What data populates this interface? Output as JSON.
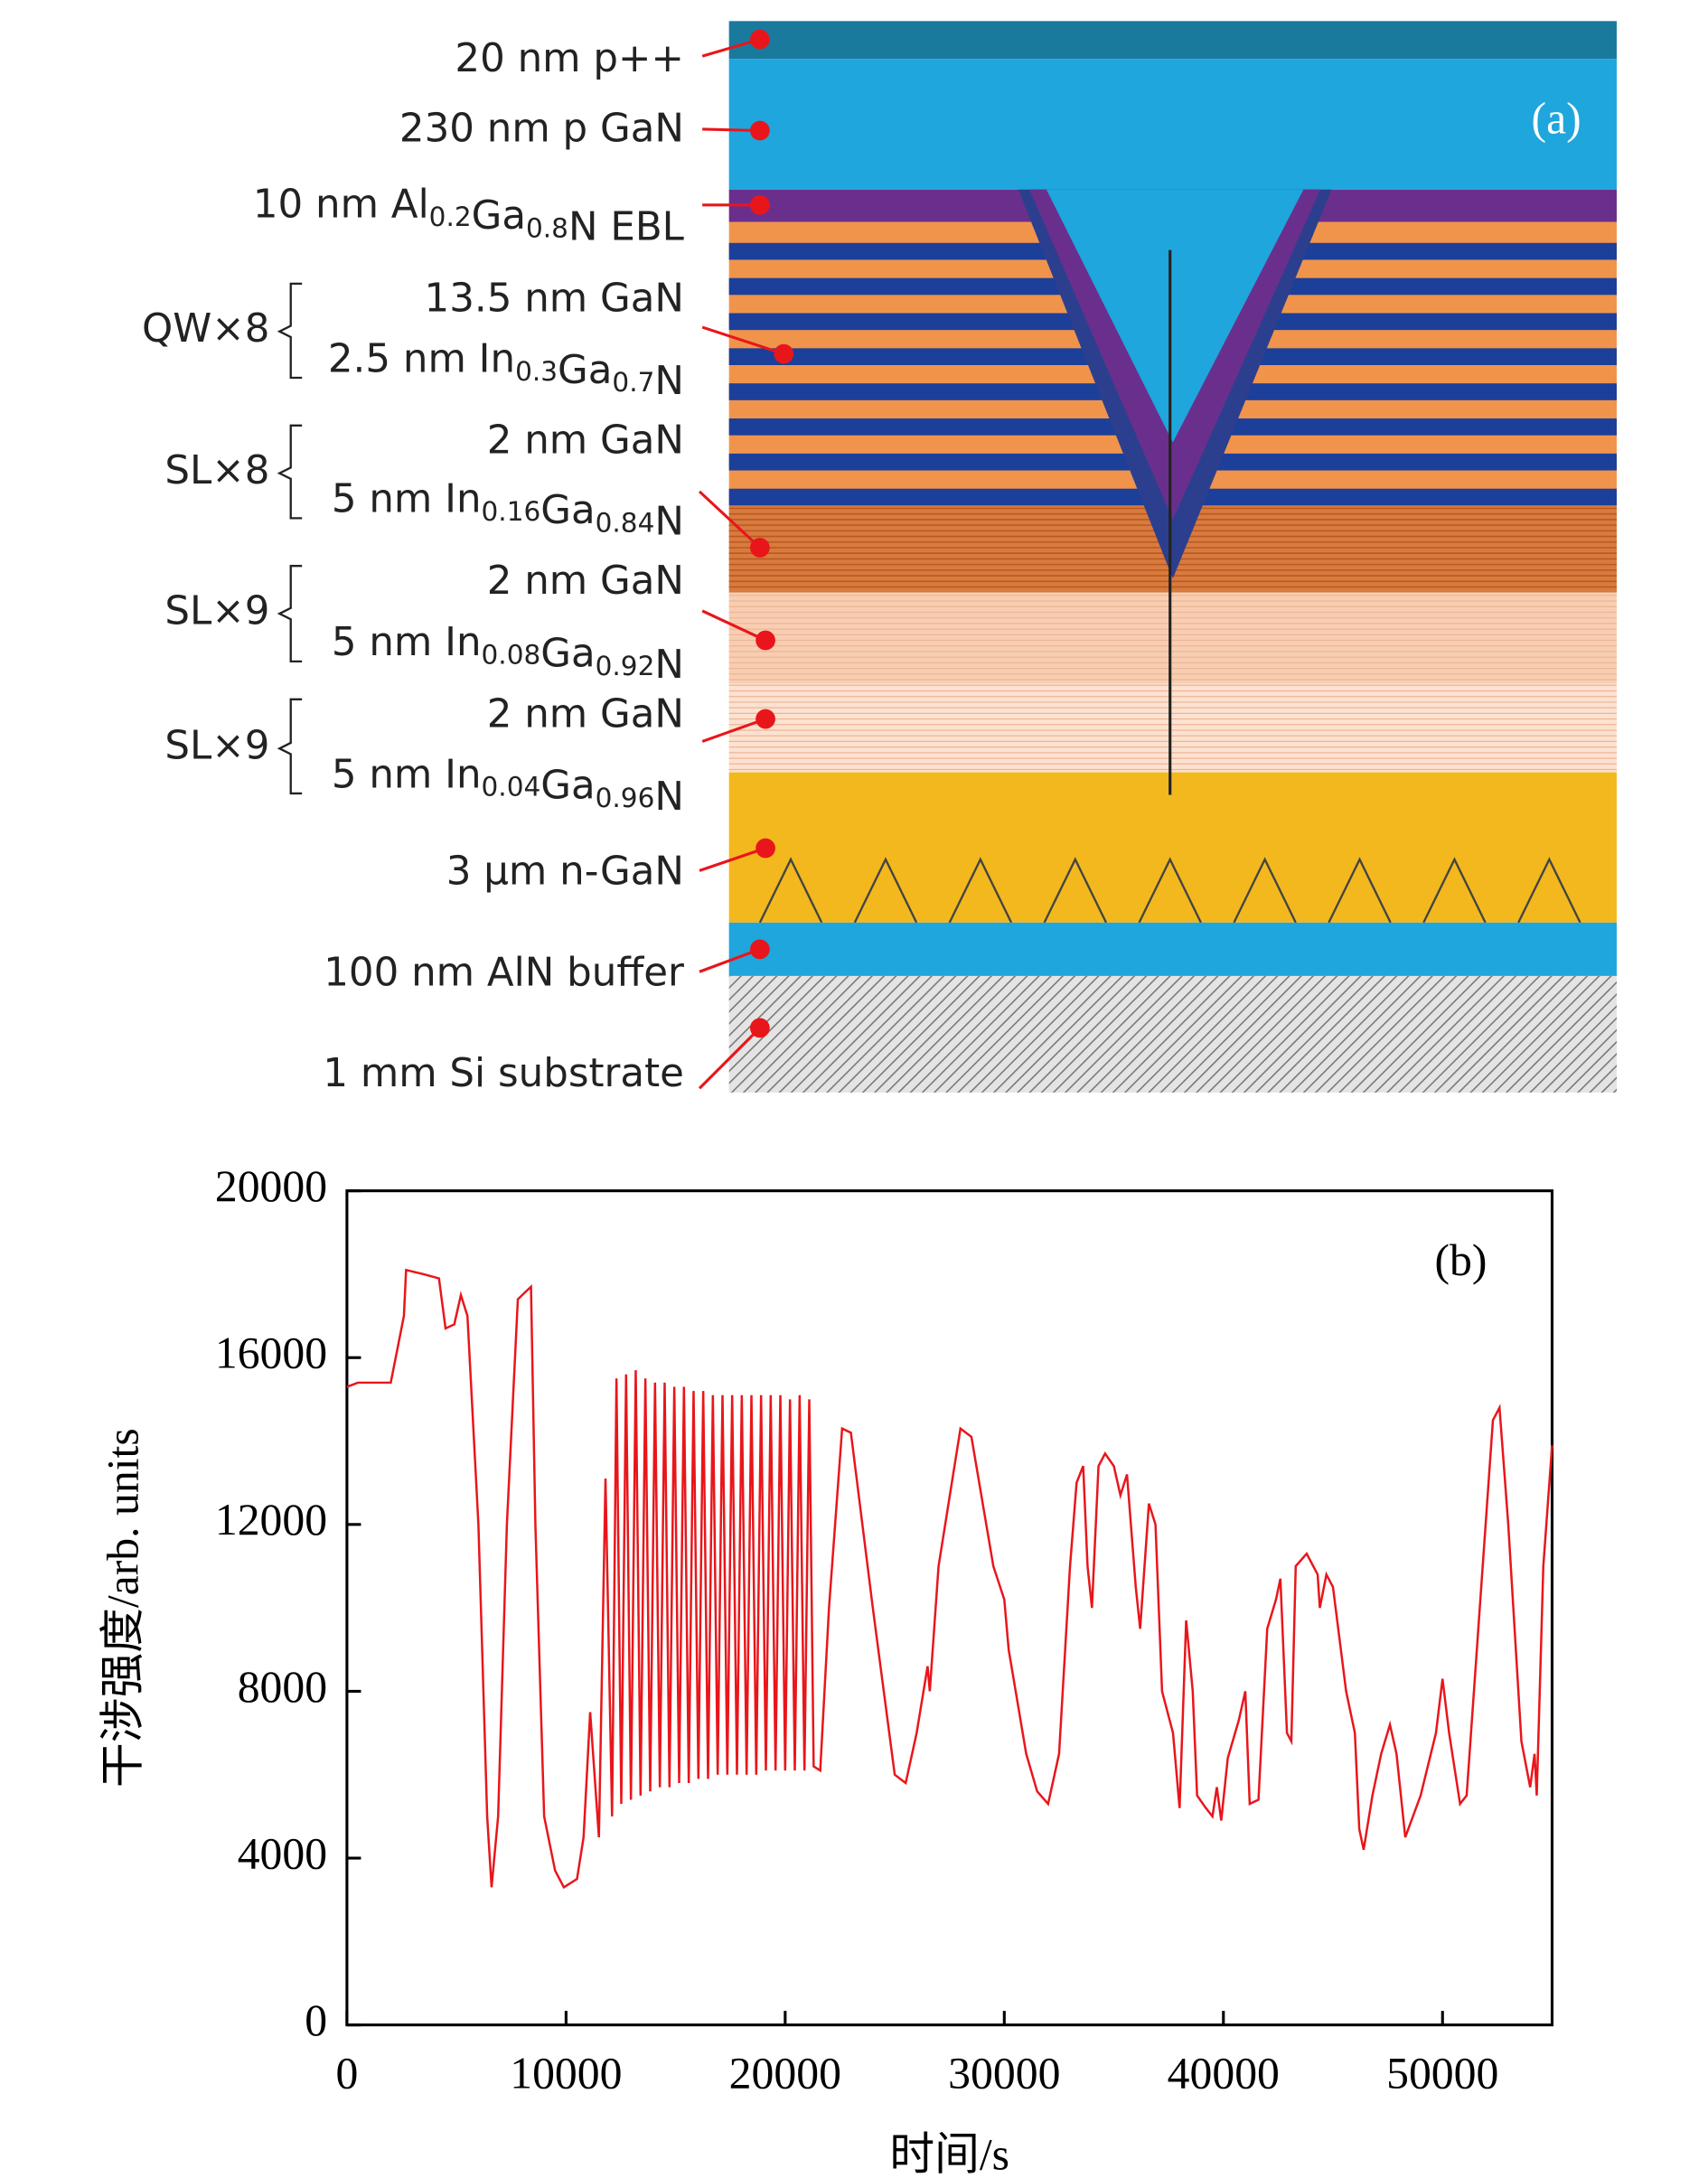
{
  "diagram": {
    "label": "(a)",
    "layers": [
      {
        "parts": [
          "20 nm p++"
        ]
      },
      {
        "parts": [
          "230 nm p GaN"
        ]
      },
      {
        "parts": [
          "10 nm Al",
          {
            "sub": "0.2"
          },
          "Ga",
          {
            "sub": "0.8"
          },
          "N EBL"
        ]
      },
      {
        "group": "QW×8",
        "lines": [
          {
            "parts": [
              "13.5 nm GaN"
            ]
          },
          {
            "parts": [
              "2.5 nm In",
              {
                "sub": "0.3"
              },
              "Ga",
              {
                "sub": "0.7"
              },
              "N"
            ]
          }
        ]
      },
      {
        "group": "SL×8",
        "lines": [
          {
            "parts": [
              "2 nm GaN"
            ]
          },
          {
            "parts": [
              "5 nm In",
              {
                "sub": "0.16"
              },
              "Ga",
              {
                "sub": "0.84"
              },
              "N"
            ]
          }
        ]
      },
      {
        "group": "SL×9",
        "lines": [
          {
            "parts": [
              "2 nm GaN"
            ]
          },
          {
            "parts": [
              "5 nm In",
              {
                "sub": "0.08"
              },
              "Ga",
              {
                "sub": "0.92"
              },
              "N"
            ]
          }
        ]
      },
      {
        "group": "SL×9",
        "lines": [
          {
            "parts": [
              "2 nm GaN"
            ]
          },
          {
            "parts": [
              "5 nm In",
              {
                "sub": "0.04"
              },
              "Ga",
              {
                "sub": "0.96"
              },
              "N"
            ]
          }
        ]
      },
      {
        "parts": [
          "3 μm n-GaN"
        ]
      },
      {
        "parts": [
          "100 nm AlN buffer"
        ]
      },
      {
        "parts": [
          "1 mm Si substrate"
        ]
      }
    ]
  },
  "chart_data": {
    "type": "line",
    "label": "(b)",
    "x_label": "时间/s",
    "y_label": "干涉强度/arb. units",
    "color": "#e8161b",
    "xlim": [
      0,
      55000
    ],
    "ylim": [
      0,
      20000
    ],
    "xticks": [
      0,
      10000,
      20000,
      30000,
      40000,
      50000
    ],
    "yticks": [
      0,
      4000,
      8000,
      12000,
      16000,
      20000
    ],
    "x": [
      0,
      500,
      2000,
      2600,
      2700,
      3500,
      4200,
      4500,
      4900,
      5200,
      5500,
      6000,
      6400,
      6600,
      6900,
      7300,
      7800,
      8200,
      8400,
      8600,
      9000,
      9500,
      9900,
      10500,
      10800,
      11100,
      11500,
      11800,
      12100,
      12300,
      12520,
      12740,
      12960,
      13180,
      13400,
      13620,
      13840,
      14060,
      14280,
      14500,
      14720,
      14940,
      15160,
      15380,
      15600,
      15820,
      16040,
      16260,
      16480,
      16700,
      16920,
      17140,
      17360,
      17580,
      17800,
      18020,
      18240,
      18460,
      18680,
      18900,
      19120,
      19340,
      19560,
      19780,
      20000,
      20220,
      20440,
      20660,
      20880,
      21100,
      21300,
      21600,
      22000,
      22600,
      23000,
      24000,
      25000,
      25500,
      26000,
      26500,
      26600,
      27000,
      28000,
      28500,
      29500,
      30000,
      30200,
      31000,
      31500,
      32000,
      32500,
      33000,
      33300,
      33600,
      33800,
      34000,
      34300,
      34600,
      35000,
      35300,
      35600,
      36000,
      36200,
      36600,
      36900,
      37200,
      37700,
      38000,
      38300,
      38600,
      38800,
      39200,
      39500,
      39700,
      39900,
      40200,
      40700,
      41000,
      41200,
      41600,
      42000,
      42400,
      42600,
      42900,
      43100,
      43300,
      43800,
      44300,
      44400,
      44700,
      45000,
      45600,
      46000,
      46200,
      46400,
      46800,
      47200,
      47600,
      47900,
      48300,
      49000,
      49700,
      50000,
      50300,
      50800,
      51100,
      51700,
      52300,
      52600,
      53000,
      53600,
      54000,
      54200,
      54300,
      54600,
      55000
    ],
    "values": [
      15300,
      15400,
      15400,
      17000,
      18100,
      18000,
      17900,
      16700,
      16800,
      17500,
      17000,
      12000,
      5000,
      3300,
      5000,
      12000,
      17400,
      17600,
      17700,
      12000,
      5000,
      3700,
      3300,
      3500,
      4500,
      7500,
      4500,
      13100,
      5000,
      15500,
      5300,
      15600,
      5400,
      15700,
      5500,
      15500,
      5600,
      15400,
      5700,
      15400,
      5700,
      15300,
      5800,
      15300,
      5800,
      15200,
      5900,
      15200,
      5900,
      15100,
      6000,
      15100,
      6000,
      15100,
      6000,
      15100,
      6000,
      15100,
      6000,
      15100,
      6100,
      15100,
      6100,
      15100,
      6100,
      15000,
      6100,
      15100,
      6100,
      15000,
      6200,
      6100,
      10000,
      14300,
      14200,
      10000,
      6000,
      5800,
      7000,
      8600,
      8000,
      11000,
      14300,
      14100,
      11000,
      10200,
      9000,
      6500,
      5600,
      5300,
      6500,
      11000,
      13000,
      13400,
      11000,
      10000,
      13400,
      13700,
      13400,
      12700,
      13200,
      10500,
      9500,
      12500,
      12000,
      8000,
      7000,
      5200,
      9700,
      8000,
      5500,
      5200,
      5000,
      5700,
      4900,
      6400,
      7300,
      8000,
      5300,
      5400,
      9500,
      10200,
      10700,
      7000,
      6800,
      11000,
      11300,
      10800,
      10000,
      10800,
      10500,
      8000,
      7000,
      4700,
      4200,
      5500,
      6500,
      7200,
      6500,
      4500,
      5500,
      7000,
      8300,
      7000,
      5300,
      5500,
      10000,
      14500,
      14800,
      12000,
      6800,
      5700,
      6500,
      5500,
      11000,
      13900
    ]
  }
}
